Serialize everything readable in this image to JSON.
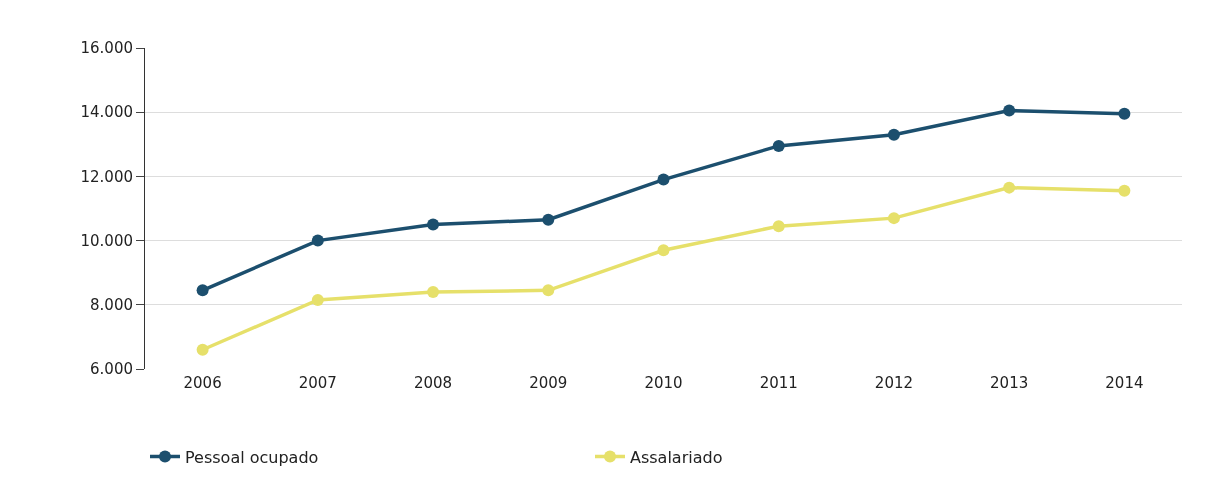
{
  "chart_data": {
    "type": "line",
    "categories": [
      "2006",
      "2007",
      "2008",
      "2009",
      "2010",
      "2011",
      "2012",
      "2013",
      "2014"
    ],
    "series": [
      {
        "name": "Pessoal ocupado",
        "color": "#1c4f6e",
        "values": [
          8450,
          10000,
          10500,
          10650,
          11900,
          12950,
          13300,
          14050,
          13950
        ]
      },
      {
        "name": "Assalariado",
        "color": "#e6e06a",
        "values": [
          6600,
          8150,
          8400,
          8450,
          9700,
          10450,
          10700,
          11650,
          11550
        ]
      }
    ],
    "ylim": [
      6000,
      16000
    ],
    "yticks": [
      {
        "value": 6000,
        "label": "6.000"
      },
      {
        "value": 8000,
        "label": "8.000"
      },
      {
        "value": 10000,
        "label": "10.000"
      },
      {
        "value": 12000,
        "label": "12.000"
      },
      {
        "value": 14000,
        "label": "14.000"
      },
      {
        "value": 16000,
        "label": "16.000"
      }
    ],
    "grid": "y",
    "legend": "bottom left",
    "marker": "circle",
    "line_style": "solid"
  }
}
